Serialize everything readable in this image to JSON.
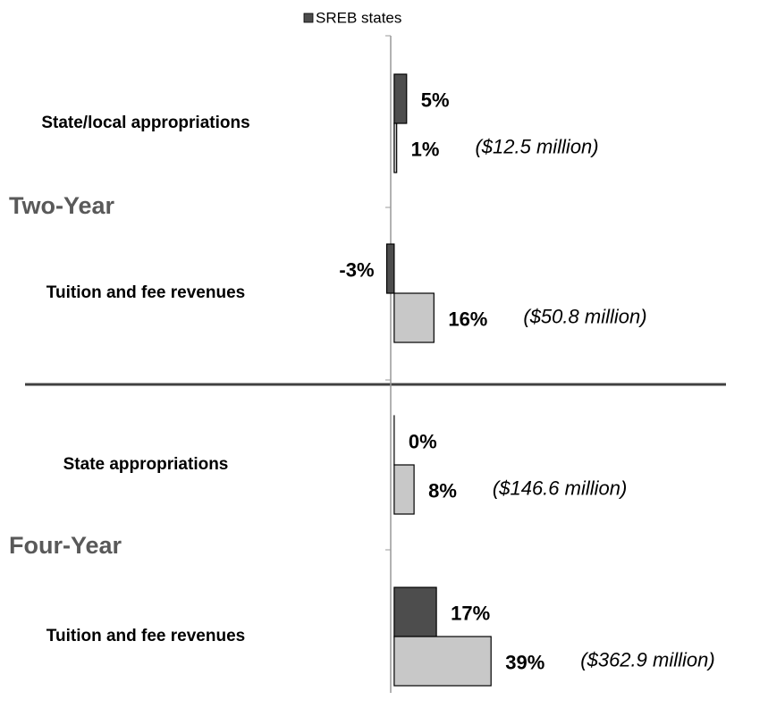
{
  "chart_data": {
    "type": "bar",
    "orientation": "horizontal",
    "groups": [
      {
        "label": "Two-Year",
        "categories": [
          0,
          1
        ]
      },
      {
        "label": "Four-Year",
        "categories": [
          2,
          3
        ]
      }
    ],
    "categories": [
      "State/local appropriations",
      "Tuition and fee revenues",
      "State appropriations",
      "Tuition and fee revenues"
    ],
    "series": [
      {
        "name": "SREB states",
        "color": "#4d4d4d",
        "values": [
          5,
          -3,
          0,
          17
        ],
        "value_labels": [
          "5%",
          "-3%",
          "0%",
          "17%"
        ]
      },
      {
        "color": "#c8c8c8",
        "values": [
          1,
          16,
          8,
          39
        ],
        "value_labels": [
          "1%",
          "16%",
          "8%",
          "39%"
        ],
        "annotations": [
          "($12.5 million)",
          "($50.8 million)",
          "($146.6 million)",
          "($362.9 million)"
        ]
      }
    ],
    "xlim": [
      -5,
      40
    ],
    "legend": "top"
  }
}
